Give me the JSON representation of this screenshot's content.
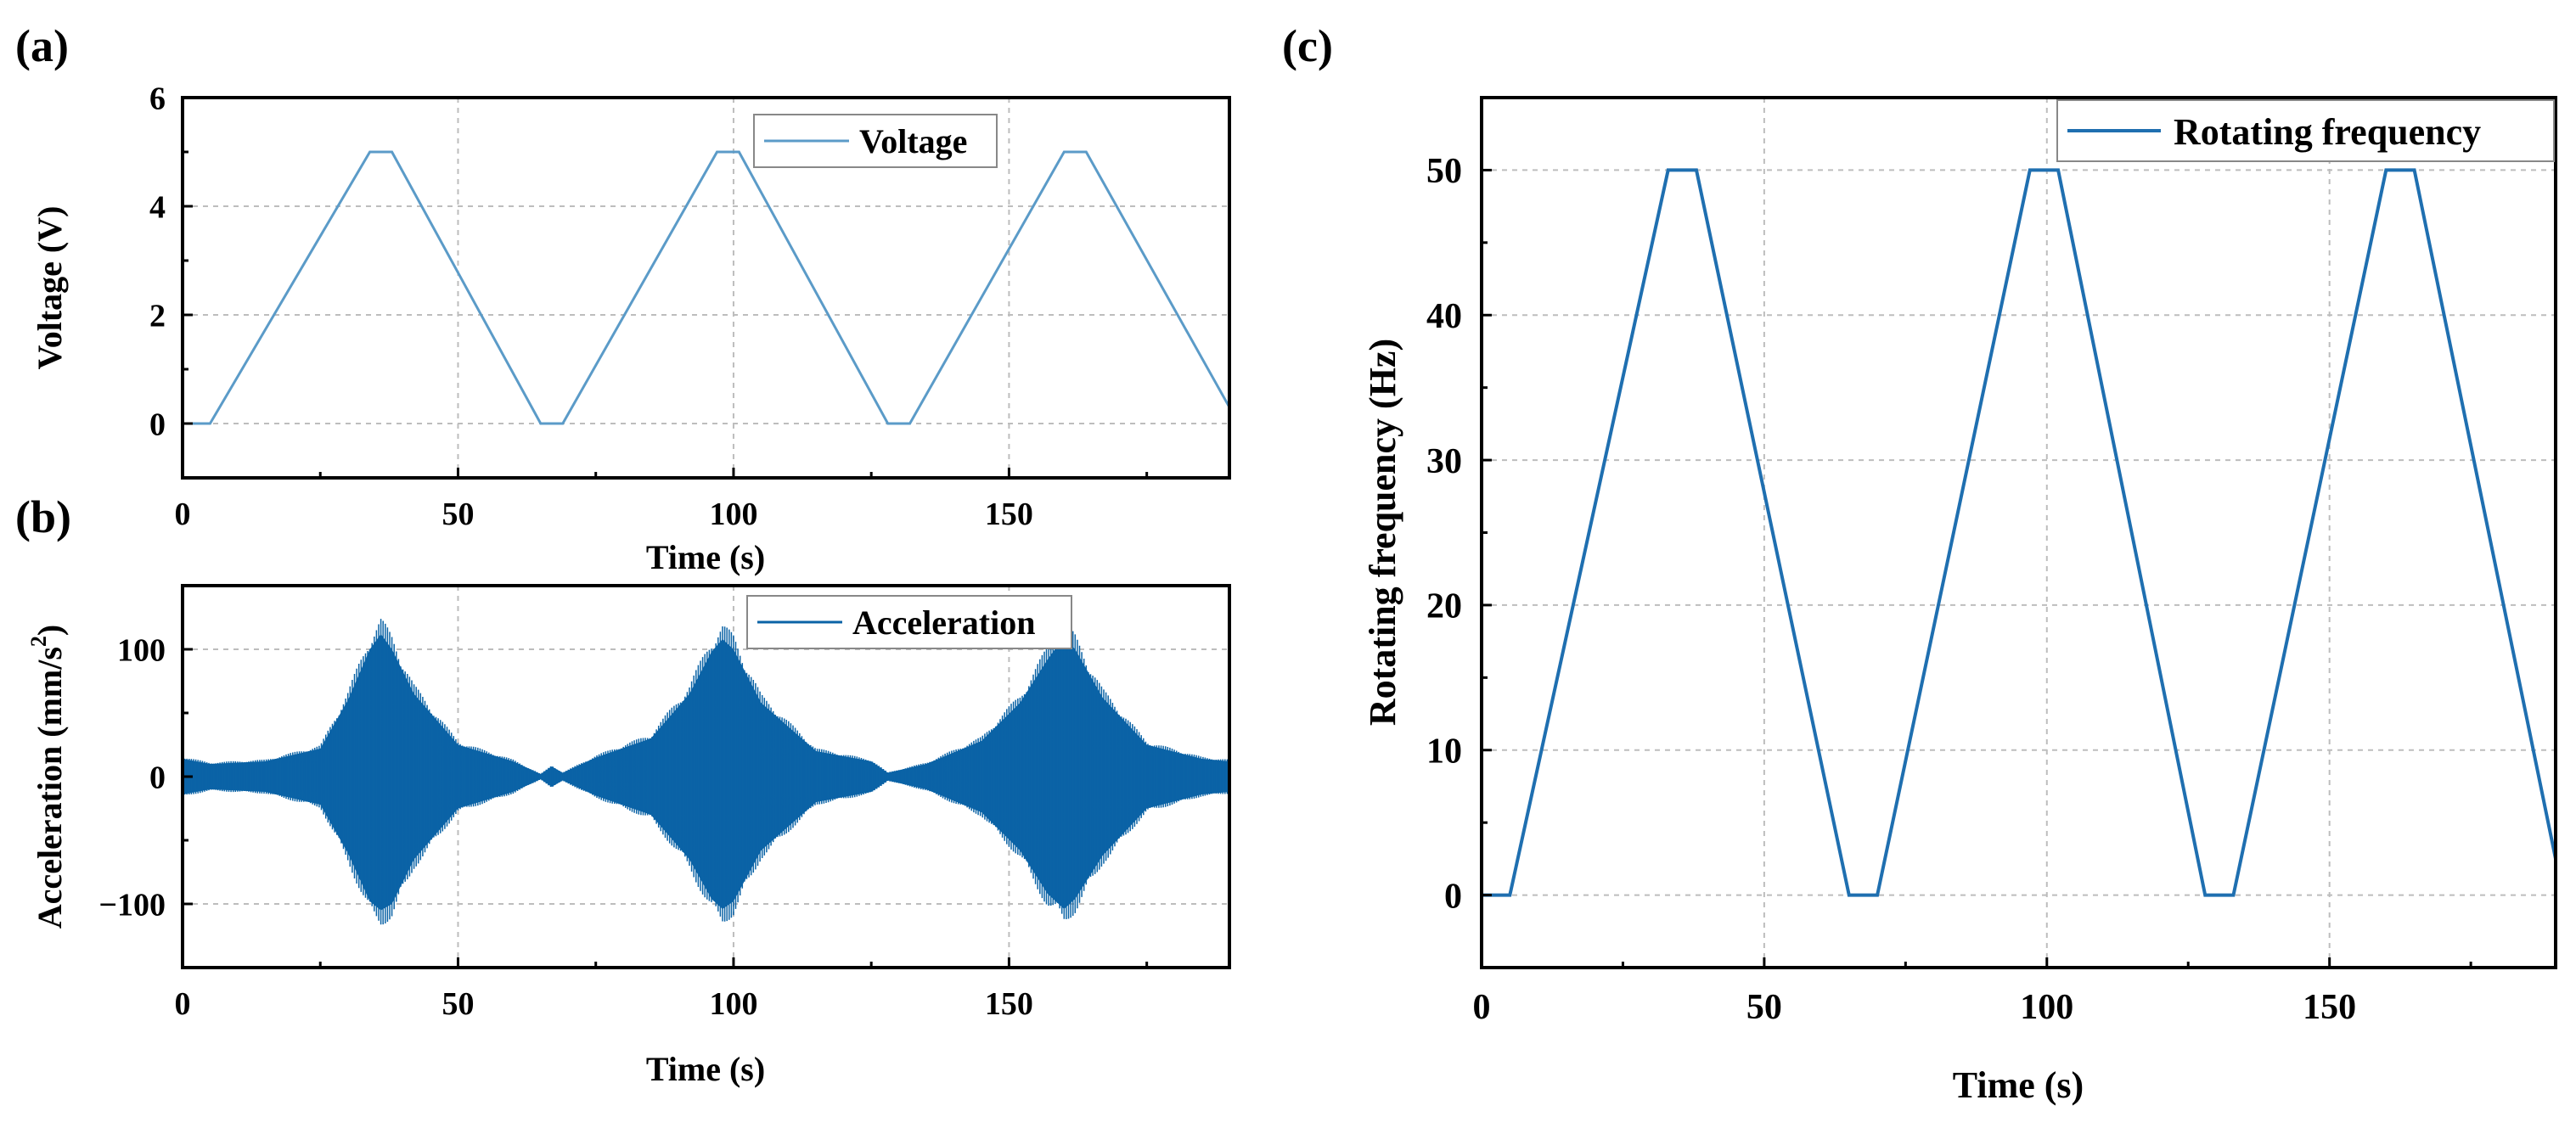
{
  "panel_labels": {
    "a": "(a)",
    "b": "(b)",
    "c": "(c)"
  },
  "colors": {
    "voltage": "#5b9bc8",
    "acceleration": "#0b63a6",
    "rotating": "#1f6fb0",
    "grid": "#bdbdbd"
  },
  "chart_data": [
    {
      "id": "a",
      "type": "line",
      "xlabel": "Time (s)",
      "ylabel": "Voltage (V)",
      "xlim": [
        0,
        190
      ],
      "ylim": [
        -1,
        6
      ],
      "xticks": [
        0,
        50,
        100,
        150
      ],
      "yticks": [
        0,
        2,
        4,
        6
      ],
      "legend": {
        "label": "Voltage",
        "position": "top-right"
      },
      "series": [
        {
          "name": "Voltage",
          "x": [
            0,
            5,
            34,
            38,
            65,
            69,
            97,
            101,
            128,
            132,
            160,
            164,
            190
          ],
          "y": [
            0,
            0,
            5,
            5,
            0,
            0,
            5,
            5,
            0,
            0,
            5,
            5,
            0.3
          ]
        }
      ]
    },
    {
      "id": "b",
      "type": "line",
      "xlabel": "Time (s)",
      "ylabel": "Acceleration  (mm/s",
      "ylabel_sup": "2",
      "ylabel_close": ")",
      "xlim": [
        0,
        190
      ],
      "ylim": [
        -150,
        150
      ],
      "xticks": [
        0,
        50,
        100,
        150
      ],
      "yticks": [
        -100,
        0,
        100
      ],
      "ytick_labels": [
        "−100",
        "0",
        "100"
      ],
      "legend": {
        "label": "Acceleration",
        "position": "top-right"
      },
      "envelope": {
        "x": [
          0,
          5,
          15,
          25,
          30,
          34,
          36,
          38,
          42,
          50,
          60,
          65,
          67,
          69,
          75,
          85,
          92,
          96,
          98,
          100,
          105,
          115,
          125,
          128,
          131,
          135,
          145,
          152,
          157,
          160,
          162,
          167,
          175,
          185,
          190
        ],
        "upper": [
          14,
          10,
          12,
          22,
          60,
          100,
          112,
          100,
          65,
          25,
          12,
          2,
          8,
          3,
          15,
          30,
          65,
          98,
          108,
          100,
          58,
          20,
          12,
          3,
          6,
          10,
          28,
          58,
          92,
          110,
          100,
          62,
          25,
          14,
          12
        ],
        "lower": [
          -14,
          -10,
          -12,
          -22,
          -60,
          -98,
          -105,
          -100,
          -65,
          -25,
          -12,
          -2,
          -8,
          -3,
          -15,
          -30,
          -65,
          -96,
          -104,
          -98,
          -58,
          -20,
          -12,
          -3,
          -6,
          -10,
          -28,
          -58,
          -92,
          -104,
          -96,
          -62,
          -25,
          -14,
          -12
        ]
      }
    },
    {
      "id": "c",
      "type": "line",
      "xlabel": "Time (s)",
      "ylabel": "Rotating frequency (Hz)",
      "xlim": [
        0,
        190
      ],
      "ylim": [
        -5,
        55
      ],
      "xticks": [
        0,
        50,
        100,
        150
      ],
      "yticks": [
        0,
        10,
        20,
        30,
        40,
        50
      ],
      "legend": {
        "label": "Rotating frequency",
        "position": "top-right"
      },
      "series": [
        {
          "name": "Rotating frequency",
          "x": [
            0,
            5,
            33,
            38,
            65,
            70,
            97,
            102,
            128,
            133,
            160,
            165,
            190
          ],
          "y": [
            0,
            0,
            50,
            50,
            0,
            0,
            50,
            50,
            0,
            0,
            50,
            50,
            2.5
          ]
        }
      ]
    }
  ]
}
